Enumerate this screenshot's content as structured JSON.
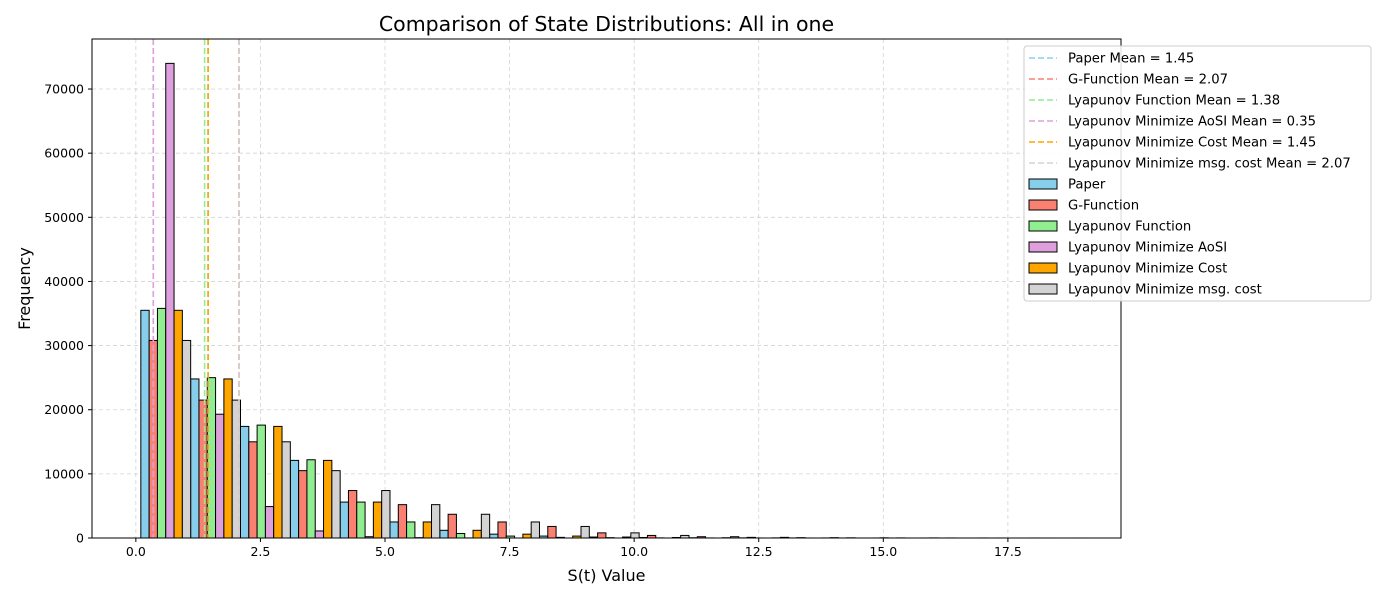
{
  "chart_data": {
    "type": "bar",
    "title": "Comparison of State Distributions: All in one",
    "xlabel": "S(t) Value",
    "ylabel": "Frequency",
    "xlim": [
      -0.88,
      19.77
    ],
    "ylim": [
      0,
      77800
    ],
    "xticks": [
      0,
      2.5,
      5,
      7.5,
      10,
      12.5,
      15,
      17.5
    ],
    "xtick_labels": [
      "0.0",
      "2.5",
      "5.0",
      "7.5",
      "10.0",
      "12.5",
      "15.0",
      "17.5"
    ],
    "yticks": [
      0,
      10000,
      20000,
      30000,
      40000,
      50000,
      60000,
      70000
    ],
    "ytick_labels": [
      "0",
      "10000",
      "20000",
      "30000",
      "40000",
      "50000",
      "60000",
      "70000"
    ],
    "grid": true,
    "legend_position": "top-right-outside",
    "bin_starts": [
      0.1,
      1.1,
      2.1,
      3.1,
      4.1,
      5.1,
      6.1,
      7.1,
      8.1,
      9.1,
      10.1,
      11.1,
      12.1,
      13.1,
      14.1,
      15.1,
      16.1,
      17.1,
      18.1
    ],
    "bin_width": 1.0,
    "series": [
      {
        "name": "Paper",
        "color": "#87CEEB",
        "values": [
          35500,
          24800,
          17400,
          12100,
          5600,
          2500,
          1200,
          600,
          300,
          150,
          80,
          40,
          20,
          10,
          5,
          3,
          2,
          1,
          1
        ]
      },
      {
        "name": "G-Function",
        "color": "#FA8072",
        "values": [
          30800,
          21500,
          15000,
          10500,
          7400,
          5200,
          3700,
          2500,
          1800,
          800,
          400,
          200,
          100,
          50,
          30,
          15,
          8,
          4,
          2
        ]
      },
      {
        "name": "Lyapunov Function",
        "color": "#90EE90",
        "values": [
          35800,
          25000,
          17600,
          12200,
          5600,
          2500,
          700,
          300,
          100,
          50,
          20,
          10,
          5,
          3,
          2,
          1,
          1,
          0,
          0
        ]
      },
      {
        "name": "Lyapunov Minimize AoSI",
        "color": "#DDA0DD",
        "values": [
          74000,
          19300,
          4900,
          1100,
          200,
          50,
          10,
          0,
          0,
          0,
          0,
          0,
          0,
          0,
          0,
          0,
          0,
          0,
          0
        ]
      },
      {
        "name": "Lyapunov Minimize Cost",
        "color": "#FFA500",
        "values": [
          35500,
          24800,
          17400,
          12100,
          5600,
          2500,
          1200,
          600,
          300,
          150,
          80,
          40,
          20,
          10,
          5,
          3,
          2,
          1,
          1
        ]
      },
      {
        "name": "Lyapunov Minimize msg. cost",
        "color": "#D3D3D3",
        "values": [
          30800,
          21500,
          15000,
          10500,
          7400,
          5200,
          3700,
          2500,
          1800,
          800,
          400,
          200,
          100,
          50,
          30,
          15,
          8,
          4,
          2
        ]
      }
    ],
    "mean_lines": [
      {
        "label": "Paper Mean = 1.45",
        "value": 1.45,
        "color": "#87CEEB"
      },
      {
        "label": "G-Function Mean = 2.07",
        "value": 2.07,
        "color": "#FA8072"
      },
      {
        "label": "Lyapunov Function Mean = 1.38",
        "value": 1.38,
        "color": "#90EE90"
      },
      {
        "label": "Lyapunov Minimize AoSI Mean = 0.35",
        "value": 0.35,
        "color": "#DDA0DD"
      },
      {
        "label": "Lyapunov Minimize Cost Mean = 1.45",
        "value": 1.45,
        "color": "#FFA500"
      },
      {
        "label": "Lyapunov Minimize msg. cost Mean = 2.07",
        "value": 2.07,
        "color": "#D3D3D3"
      }
    ]
  }
}
